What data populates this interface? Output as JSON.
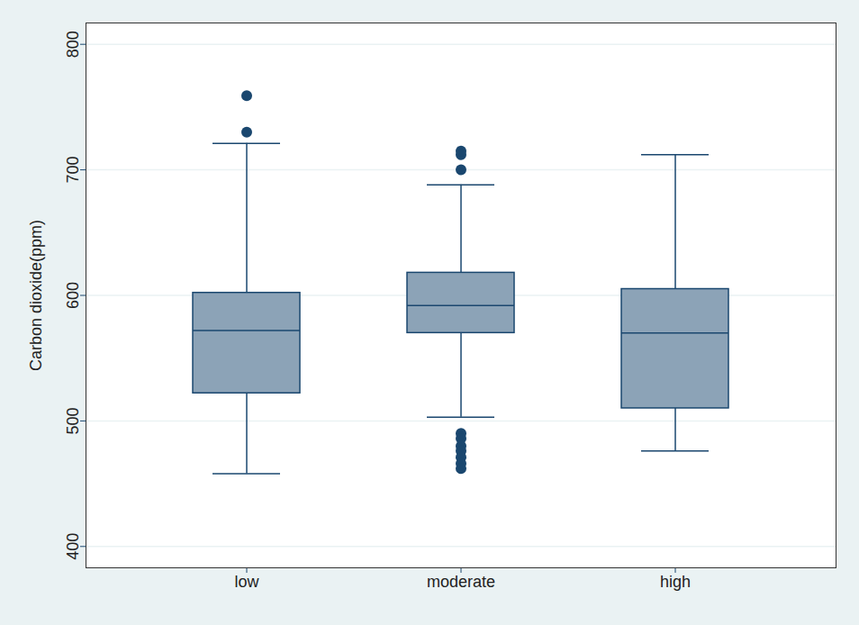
{
  "chart_data": {
    "type": "box",
    "y_label": "Carbon dioxide(ppm)",
    "categories": [
      "low",
      "moderate",
      "high"
    ],
    "lower_whisker": [
      458,
      503,
      476
    ],
    "q1": [
      522,
      570,
      510
    ],
    "median": [
      572,
      592,
      570
    ],
    "q3": [
      602,
      618,
      605
    ],
    "upper_whisker": [
      721,
      688,
      712
    ],
    "outliers": [
      [
        730,
        759
      ],
      [
        700,
        712,
        715,
        490,
        486,
        480,
        476,
        471,
        466,
        462
      ],
      []
    ],
    "color": "#8ca3b7",
    "ylim": [
      383,
      817
    ],
    "yticks": [
      400,
      500,
      600,
      700,
      800
    ],
    "grid": true
  }
}
